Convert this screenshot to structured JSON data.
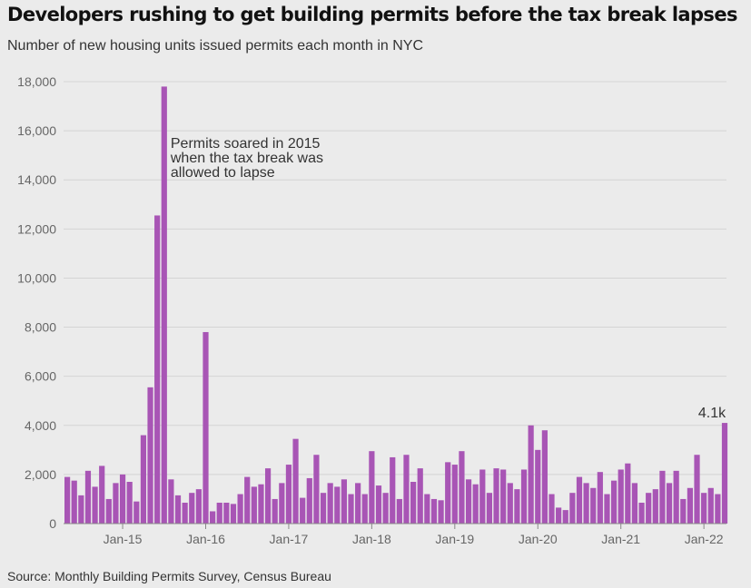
{
  "title": "Developers rushing to get building permits before the tax break lapses",
  "subtitle": "Number of new housing units issued permits each month in NYC",
  "source": "Source: Monthly Building Permits Survey, Census Bureau",
  "colors": {
    "bar": "#a855b5",
    "grid": "#d4d4d4",
    "axis": "#888888"
  },
  "chart_data": {
    "type": "bar",
    "ylim": [
      0,
      18000
    ],
    "yticks": [
      0,
      2000,
      4000,
      6000,
      8000,
      10000,
      12000,
      14000,
      16000,
      18000
    ],
    "ytick_labels": [
      "0",
      "2,000",
      "4,000",
      "6,000",
      "8,000",
      "10,000",
      "12,000",
      "14,000",
      "16,000",
      "18,000"
    ],
    "xtick_labels": [
      {
        "label": "Jan-15",
        "index": 8
      },
      {
        "label": "Jan-16",
        "index": 20
      },
      {
        "label": "Jan-17",
        "index": 32
      },
      {
        "label": "Jan-18",
        "index": 44
      },
      {
        "label": "Jan-19",
        "index": 56
      },
      {
        "label": "Jan-20",
        "index": 68
      },
      {
        "label": "Jan-21",
        "index": 80
      },
      {
        "label": "Jan-22",
        "index": 92
      }
    ],
    "grid": true,
    "values": [
      1900,
      1750,
      1150,
      2150,
      1500,
      2350,
      1000,
      1650,
      2000,
      1700,
      900,
      3600,
      5550,
      12550,
      17800,
      1800,
      1150,
      850,
      1250,
      1400,
      7800,
      500,
      850,
      850,
      800,
      1200,
      1900,
      1500,
      1600,
      2250,
      1000,
      1650,
      2400,
      3450,
      1050,
      1850,
      2800,
      1250,
      1650,
      1500,
      1800,
      1200,
      1650,
      1200,
      2950,
      1550,
      1250,
      2700,
      1000,
      2800,
      1700,
      2250,
      1200,
      1000,
      950,
      2500,
      2400,
      2950,
      1800,
      1600,
      2200,
      1250,
      2250,
      2200,
      1650,
      1400,
      2200,
      4000,
      3000,
      3800,
      1200,
      650,
      550,
      1250,
      1900,
      1650,
      1450,
      2100,
      1200,
      1750,
      2200,
      2450,
      1650,
      850,
      1250,
      1400,
      2150,
      1650,
      2150,
      1000,
      1450,
      2800,
      1250,
      1450,
      1200,
      4100
    ],
    "annotations": [
      {
        "lines": [
          "Permits soared in 2015",
          "when the tax break was",
          "allowed to lapse"
        ],
        "index": 14
      },
      {
        "text": "4.1k",
        "index": 95
      }
    ]
  }
}
